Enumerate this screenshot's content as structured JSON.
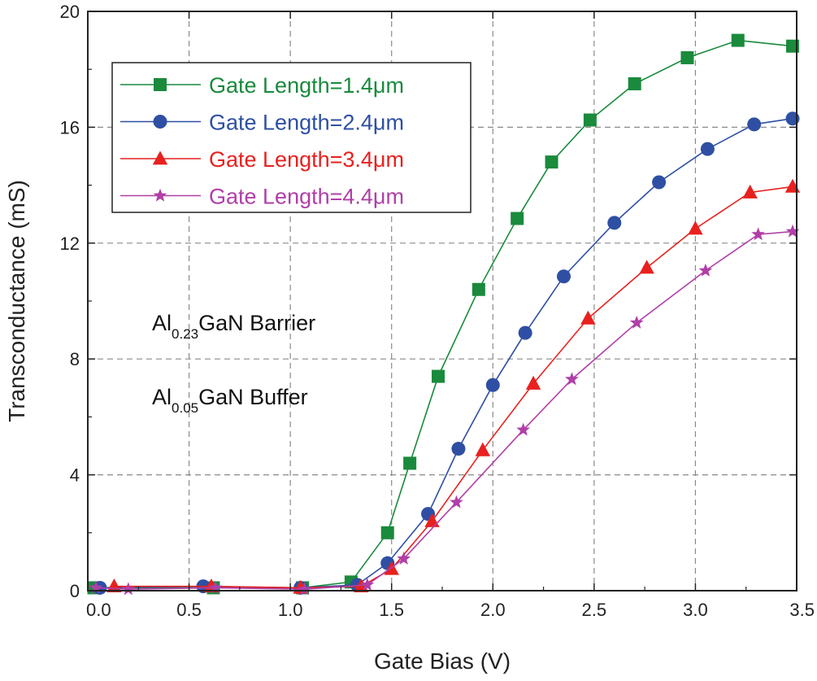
{
  "chart_data": {
    "type": "line",
    "title": "",
    "xlabel": "Gate Bias (V)",
    "ylabel": "Transconductance (mS)",
    "xlim": [
      0.0,
      3.5
    ],
    "ylim": [
      0,
      20
    ],
    "xticks": [
      "0.0",
      "0.5",
      "1.0",
      "1.5",
      "2.0",
      "2.5",
      "3.0",
      "3.5"
    ],
    "xtick_values": [
      0.0,
      0.5,
      1.0,
      1.5,
      2.0,
      2.5,
      3.0,
      3.5
    ],
    "yticks": [
      "0",
      "4",
      "8",
      "12",
      "16",
      "20"
    ],
    "ytick_values": [
      0,
      4,
      8,
      12,
      16,
      20
    ],
    "grid": true,
    "legend_position": "top-left",
    "series": [
      {
        "name": "Gate Length=1.4μm",
        "color": "#1a8a3c",
        "marker": "square",
        "x": [
          0.03,
          0.62,
          1.06,
          1.3,
          1.48,
          1.59,
          1.73,
          1.93,
          2.12,
          2.29,
          2.48,
          2.7,
          2.96,
          3.21,
          3.48
        ],
        "y": [
          0.1,
          0.1,
          0.1,
          0.3,
          2.0,
          4.4,
          7.4,
          10.4,
          12.85,
          14.8,
          16.25,
          17.5,
          18.4,
          19.0,
          18.8
        ]
      },
      {
        "name": "Gate Length=2.4μm",
        "color": "#2e4fa3",
        "marker": "circle",
        "x": [
          0.06,
          0.57,
          1.05,
          1.33,
          1.48,
          1.68,
          1.83,
          2.0,
          2.16,
          2.35,
          2.6,
          2.82,
          3.06,
          3.29,
          3.48
        ],
        "y": [
          0.1,
          0.15,
          0.1,
          0.2,
          0.95,
          2.65,
          4.9,
          7.1,
          8.9,
          10.85,
          12.7,
          14.1,
          15.25,
          16.1,
          16.3
        ]
      },
      {
        "name": "Gate Length=3.4μm",
        "color": "#e8211f",
        "marker": "triangle",
        "x": [
          0.13,
          0.61,
          1.05,
          1.35,
          1.5,
          1.7,
          1.95,
          2.2,
          2.47,
          2.76,
          3.0,
          3.27,
          3.48
        ],
        "y": [
          0.15,
          0.15,
          0.1,
          0.15,
          0.75,
          2.4,
          4.85,
          7.15,
          9.4,
          11.15,
          12.5,
          13.75,
          13.95
        ]
      },
      {
        "name": "Gate Length=4.4μm",
        "color": "#b03fa8",
        "marker": "star",
        "x": [
          0.04,
          0.2,
          0.63,
          1.07,
          1.38,
          1.56,
          1.82,
          2.15,
          2.39,
          2.71,
          3.05,
          3.31,
          3.48
        ],
        "y": [
          0.1,
          0.05,
          0.1,
          0.05,
          0.2,
          1.1,
          3.05,
          5.55,
          7.3,
          9.25,
          11.05,
          12.3,
          12.4
        ]
      }
    ],
    "annotations": [
      {
        "prefix": "Al",
        "sub": "0.23",
        "suffix": "GaN Barrier"
      },
      {
        "prefix": "Al",
        "sub": "0.05",
        "suffix": "GaN Buffer"
      }
    ]
  }
}
